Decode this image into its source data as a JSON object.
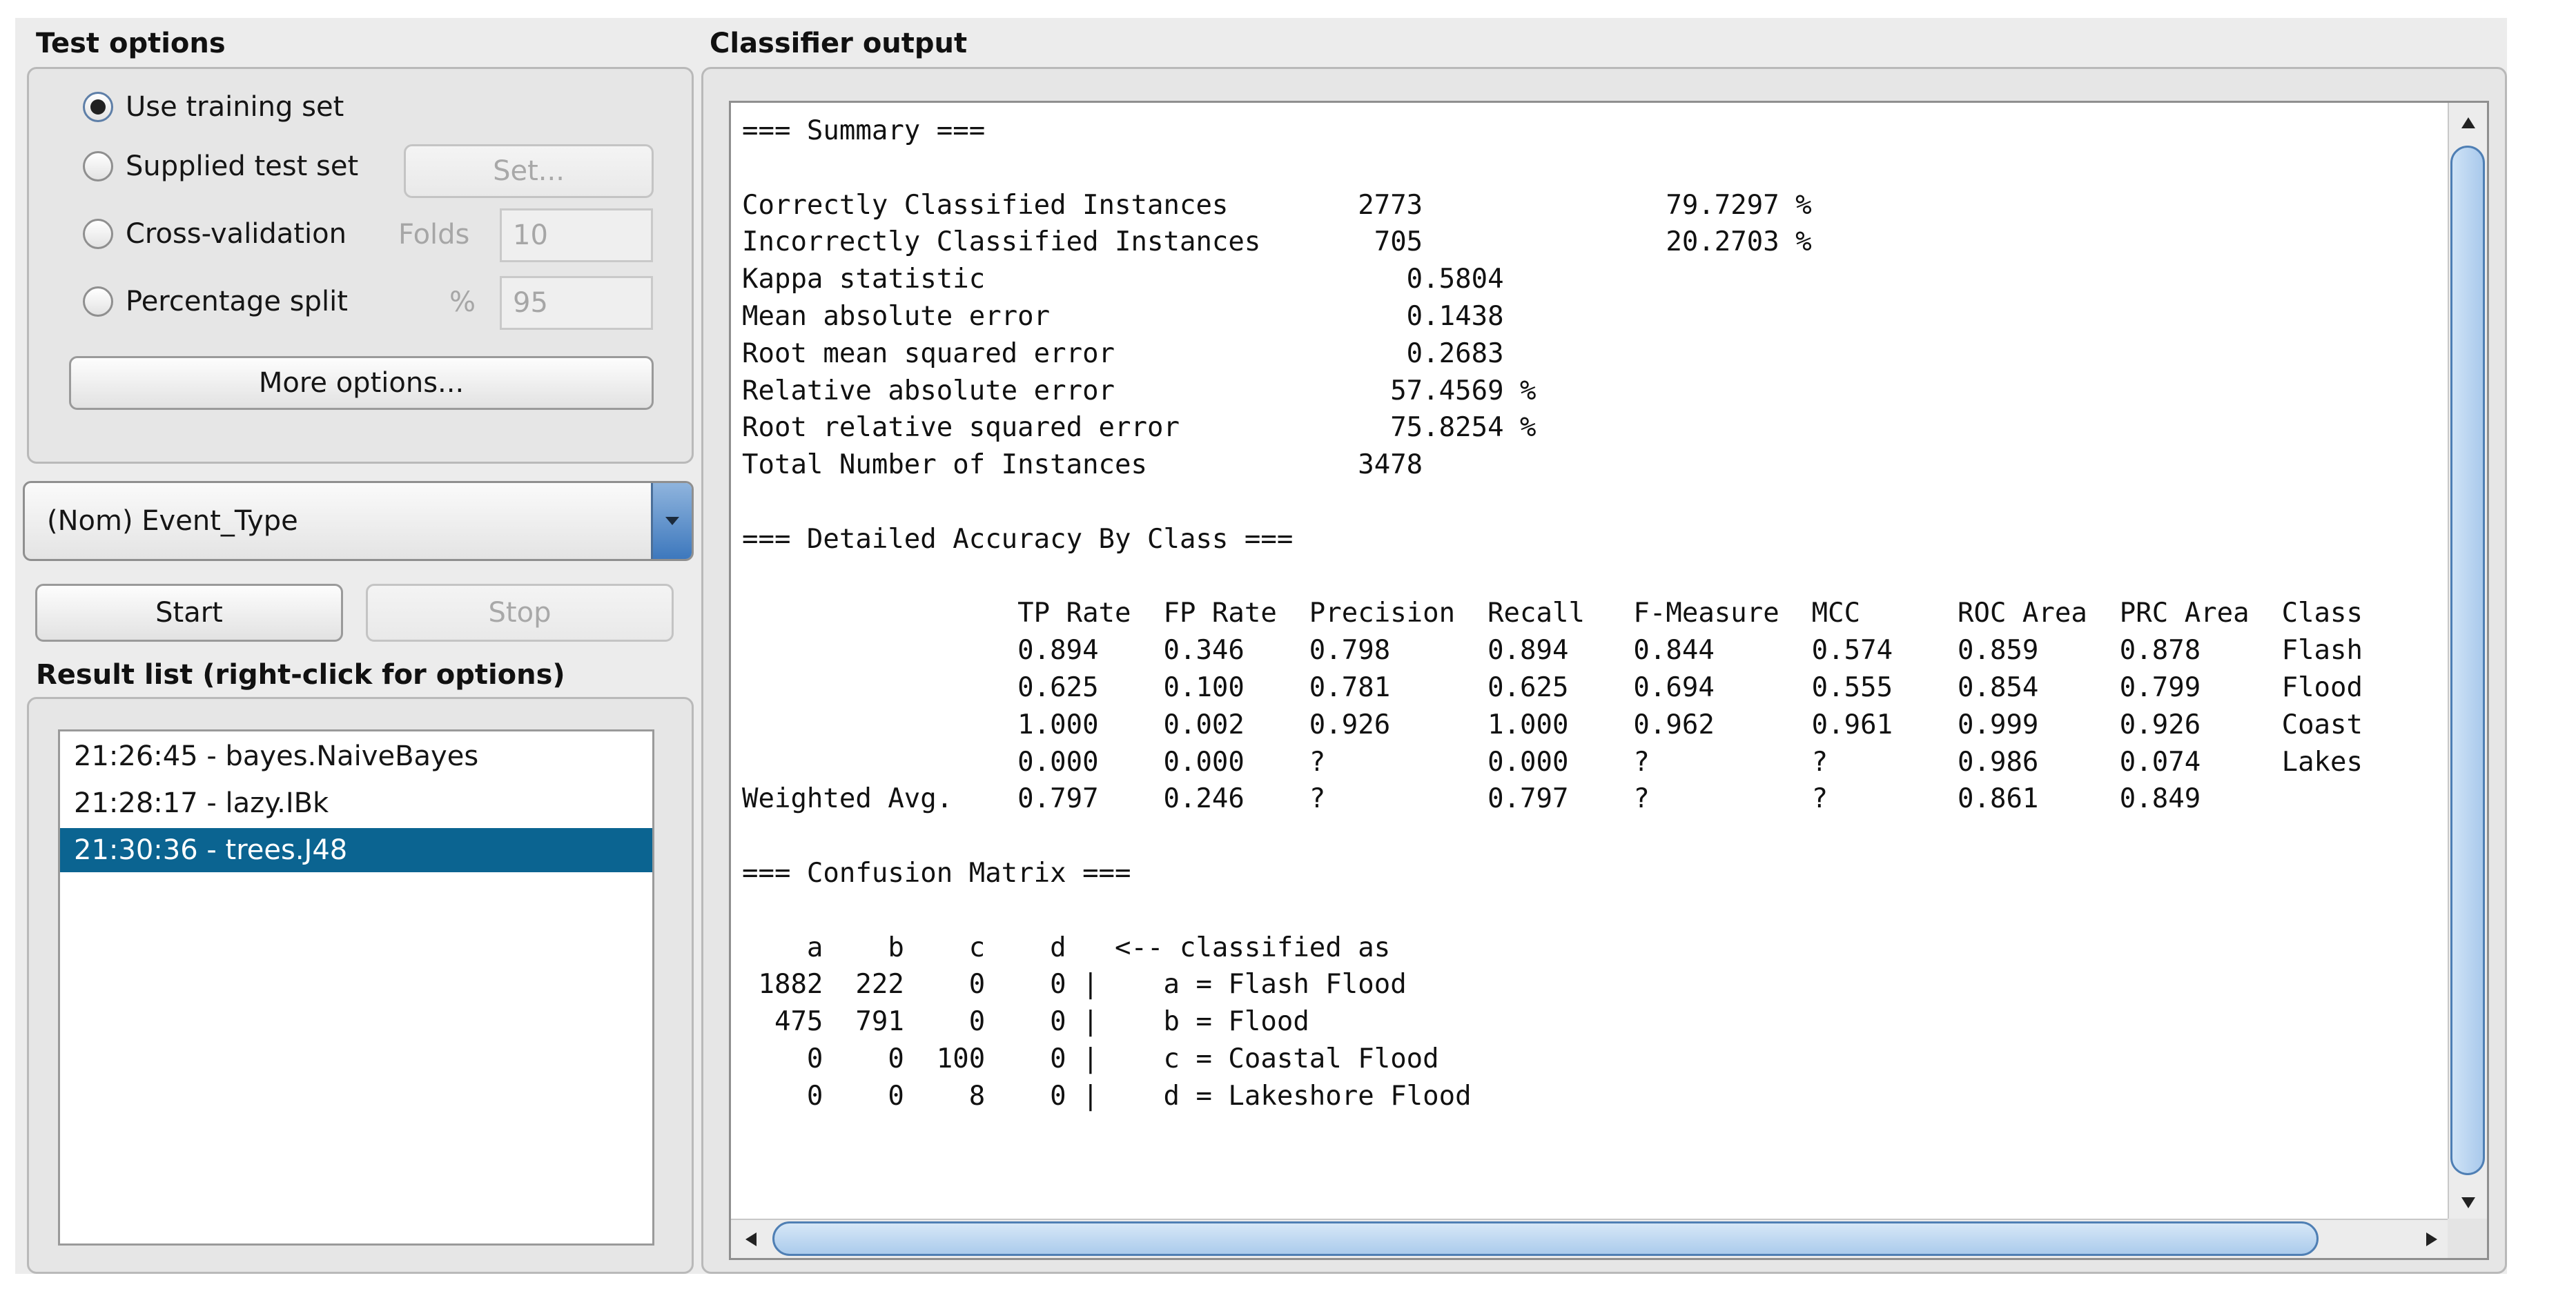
{
  "test_options": {
    "title": "Test options",
    "use_training_set": "Use training set",
    "supplied_test_set": "Supplied test set",
    "set_button": "Set...",
    "cross_validation": "Cross-validation",
    "folds_label": "Folds",
    "folds_value": "10",
    "percentage_split": "Percentage split",
    "percent_symbol": "%",
    "percent_value": "95",
    "more_options": "More options...",
    "selected_option": "use_training_set"
  },
  "class_selector": {
    "value": "(Nom) Event_Type"
  },
  "run_controls": {
    "start": "Start",
    "stop": "Stop"
  },
  "result_list": {
    "title": "Result list (right-click for options)",
    "items": [
      "21:26:45 - bayes.NaiveBayes",
      "21:28:17 - lazy.IBk",
      "21:30:36 - trees.J48"
    ],
    "selected_index": 2
  },
  "classifier_output": {
    "title": "Classifier output",
    "text": "=== Summary ===\n\nCorrectly Classified Instances        2773               79.7297 %\nIncorrectly Classified Instances       705               20.2703 %\nKappa statistic                          0.5804\nMean absolute error                      0.1438\nRoot mean squared error                  0.2683\nRelative absolute error                 57.4569 %\nRoot relative squared error             75.8254 %\nTotal Number of Instances             3478     \n\n=== Detailed Accuracy By Class ===\n\n                 TP Rate  FP Rate  Precision  Recall   F-Measure  MCC      ROC Area  PRC Area  Class\n                 0.894    0.346    0.798      0.894    0.844      0.574    0.859     0.878     Flash\n                 0.625    0.100    0.781      0.625    0.694      0.555    0.854     0.799     Flood\n                 1.000    0.002    0.926      1.000    0.962      0.961    0.999     0.926     Coast\n                 0.000    0.000    ?          0.000    ?          ?        0.986     0.074     Lakes\nWeighted Avg.    0.797    0.246    ?          0.797    ?          ?        0.861     0.849     \n\n=== Confusion Matrix ===\n\n    a    b    c    d   <-- classified as\n 1882  222    0    0 |    a = Flash Flood\n  475  791    0    0 |    b = Flood\n    0    0  100    0 |    c = Coastal Flood\n    0    0    8    0 |    d = Lakeshore Flood"
  },
  "colors": {
    "selection": "#0b6491",
    "scroll_thumb": "#a9c9ec",
    "combo_arrow": "#3d78bd"
  }
}
